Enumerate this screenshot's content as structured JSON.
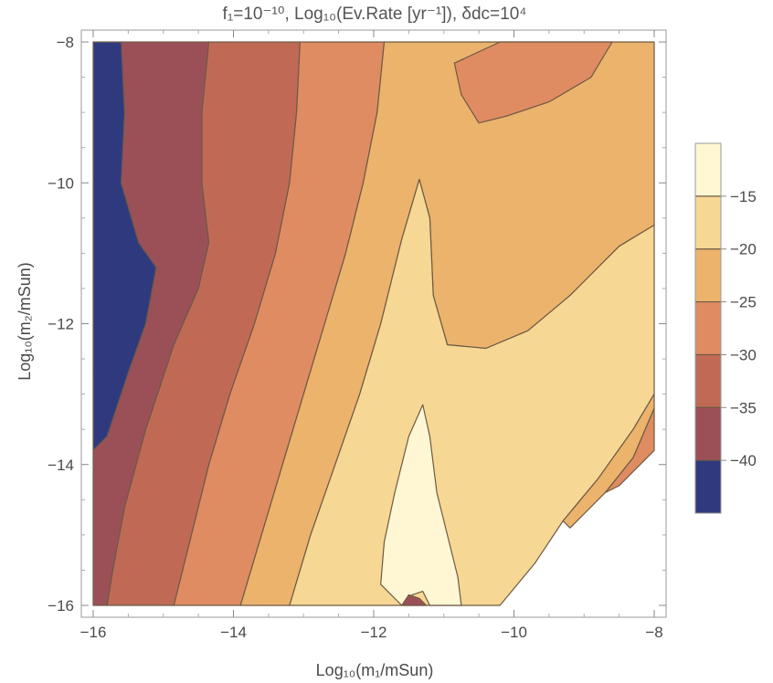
{
  "chart_data": {
    "type": "contour",
    "title": "f₁=10⁻¹⁰, Log₁₀(Ev.Rate [yr⁻¹]), δdc=10⁴",
    "xlabel": "Log₁₀(m₁/mSun)",
    "ylabel": "Log₁₀(m₂/mSun)",
    "xlim": [
      -16,
      -8
    ],
    "ylim": [
      -16,
      -8
    ],
    "x_ticks": [
      "−16",
      "−14",
      "−12",
      "−10",
      "−8"
    ],
    "y_ticks": [
      "−8",
      "−10",
      "−12",
      "−14",
      "−16"
    ],
    "x_tick_values": [
      -16,
      -14,
      -12,
      -10,
      -8
    ],
    "y_tick_values": [
      -8,
      -10,
      -12,
      -14,
      -16
    ],
    "contour_levels": [
      -40,
      -35,
      -30,
      -25,
      -20,
      -15
    ],
    "legend": {
      "position": "right",
      "labels": [
        "−15",
        "−20",
        "−25",
        "−30",
        "−35",
        "−40"
      ],
      "values": [
        -15,
        -20,
        -25,
        -30,
        -35,
        -40
      ]
    },
    "colors": {
      "band_below_-40": "#2f3a7e",
      "band_-40_-35": "#9b5058",
      "band_-35_-30": "#c06a56",
      "band_-30_-25": "#df8c62",
      "band_-25_-20": "#ecb36c",
      "band_-20_-15": "#f6d794",
      "band_above_-15": "#fff7d3",
      "contour_line": "#6d5a45"
    },
    "regions": [
      {
        "band": "band_below_-40",
        "polygon": [
          [
            -16,
            -8
          ],
          [
            -15.6,
            -8
          ],
          [
            -15.55,
            -9
          ],
          [
            -15.6,
            -10
          ],
          [
            -15.35,
            -10.85
          ],
          [
            -15.1,
            -11.2
          ],
          [
            -15.25,
            -12
          ],
          [
            -15.5,
            -12.7
          ],
          [
            -15.8,
            -13.6
          ],
          [
            -16,
            -13.8
          ]
        ]
      },
      {
        "band": "band_-40_-35",
        "polygon": [
          [
            -15.6,
            -8
          ],
          [
            -14.35,
            -8
          ],
          [
            -14.45,
            -9
          ],
          [
            -14.45,
            -10
          ],
          [
            -14.35,
            -10.85
          ],
          [
            -14.5,
            -11.5
          ],
          [
            -14.85,
            -12.3
          ],
          [
            -15.25,
            -13.5
          ],
          [
            -15.55,
            -14.6
          ],
          [
            -15.72,
            -15.5
          ],
          [
            -15.8,
            -16
          ],
          [
            -16,
            -16
          ],
          [
            -16,
            -13.8
          ],
          [
            -15.8,
            -13.6
          ],
          [
            -15.5,
            -12.7
          ],
          [
            -15.25,
            -12
          ],
          [
            -15.1,
            -11.2
          ],
          [
            -15.35,
            -10.85
          ],
          [
            -15.6,
            -10
          ],
          [
            -15.55,
            -9
          ]
        ]
      },
      {
        "band": "band_-35_-30",
        "polygon": [
          [
            -14.35,
            -8
          ],
          [
            -13.05,
            -8
          ],
          [
            -13.1,
            -9
          ],
          [
            -13.2,
            -10
          ],
          [
            -13.4,
            -11
          ],
          [
            -13.7,
            -12
          ],
          [
            -14.05,
            -13
          ],
          [
            -14.35,
            -14
          ],
          [
            -14.6,
            -15
          ],
          [
            -14.85,
            -16
          ],
          [
            -15.8,
            -16
          ],
          [
            -15.72,
            -15.5
          ],
          [
            -15.55,
            -14.6
          ],
          [
            -15.25,
            -13.5
          ],
          [
            -14.85,
            -12.3
          ],
          [
            -14.5,
            -11.5
          ],
          [
            -14.35,
            -10.85
          ],
          [
            -14.45,
            -10
          ],
          [
            -14.45,
            -9
          ]
        ]
      },
      {
        "band": "band_-30_-25",
        "polygon": [
          [
            -13.05,
            -8
          ],
          [
            -11.85,
            -8
          ],
          [
            -11.95,
            -9
          ],
          [
            -12.15,
            -10
          ],
          [
            -12.4,
            -11
          ],
          [
            -12.7,
            -12
          ],
          [
            -13.0,
            -13
          ],
          [
            -13.3,
            -14
          ],
          [
            -13.6,
            -15
          ],
          [
            -13.9,
            -16
          ],
          [
            -14.85,
            -16
          ],
          [
            -14.6,
            -15
          ],
          [
            -14.35,
            -14
          ],
          [
            -14.05,
            -13
          ],
          [
            -13.7,
            -12
          ],
          [
            -13.4,
            -11
          ],
          [
            -13.2,
            -10
          ],
          [
            -13.1,
            -9
          ]
        ]
      },
      {
        "band": "band_-25_-20",
        "polygon": [
          [
            -11.85,
            -8
          ],
          [
            -8,
            -8
          ],
          [
            -8,
            -10.6
          ],
          [
            -8.5,
            -10.9
          ],
          [
            -9.2,
            -11.6
          ],
          [
            -9.8,
            -12.1
          ],
          [
            -10.4,
            -12.35
          ],
          [
            -10.95,
            -12.3
          ],
          [
            -11.15,
            -11.6
          ],
          [
            -11.2,
            -10.5
          ],
          [
            -11.35,
            -9.95
          ],
          [
            -11.6,
            -10.8
          ],
          [
            -11.9,
            -12
          ],
          [
            -12.2,
            -13
          ],
          [
            -12.55,
            -14
          ],
          [
            -12.9,
            -15
          ],
          [
            -13.2,
            -16
          ],
          [
            -13.9,
            -16
          ],
          [
            -13.6,
            -15
          ],
          [
            -13.3,
            -14
          ],
          [
            -13.0,
            -13
          ],
          [
            -12.7,
            -12
          ],
          [
            -12.4,
            -11
          ],
          [
            -12.15,
            -10
          ],
          [
            -11.95,
            -9
          ]
        ]
      },
      {
        "band": "band_-20_-15",
        "polygon": [
          [
            -8,
            -10.6
          ],
          [
            -8,
            -13.0
          ],
          [
            -8.3,
            -13.5
          ],
          [
            -8.8,
            -14.2
          ],
          [
            -9.3,
            -14.8
          ],
          [
            -9.7,
            -15.4
          ],
          [
            -10.2,
            -16
          ],
          [
            -13.2,
            -16
          ],
          [
            -12.9,
            -15
          ],
          [
            -12.55,
            -14
          ],
          [
            -12.2,
            -13
          ],
          [
            -11.9,
            -12
          ],
          [
            -11.6,
            -10.8
          ],
          [
            -11.35,
            -9.95
          ],
          [
            -11.2,
            -10.5
          ],
          [
            -11.15,
            -11.6
          ],
          [
            -10.95,
            -12.3
          ],
          [
            -10.4,
            -12.35
          ],
          [
            -9.8,
            -12.1
          ],
          [
            -9.2,
            -11.6
          ],
          [
            -8.5,
            -10.9
          ]
        ]
      },
      {
        "band": "band_above_-15",
        "polygon": [
          [
            -11.3,
            -13.15
          ],
          [
            -11.2,
            -13.6
          ],
          [
            -11.1,
            -14.4
          ],
          [
            -10.95,
            -15.0
          ],
          [
            -10.8,
            -15.6
          ],
          [
            -10.75,
            -16
          ],
          [
            -11.2,
            -16
          ],
          [
            -11.3,
            -15.8
          ],
          [
            -11.45,
            -15.85
          ],
          [
            -11.6,
            -16
          ],
          [
            -11.9,
            -15.7
          ],
          [
            -11.85,
            -15.1
          ],
          [
            -11.7,
            -14.4
          ],
          [
            -11.5,
            -13.6
          ]
        ]
      },
      {
        "band": "band_-30_-25",
        "polygon": [
          [
            -10.2,
            -8
          ],
          [
            -8.6,
            -8
          ],
          [
            -8.9,
            -8.5
          ],
          [
            -9.5,
            -8.85
          ],
          [
            -10.1,
            -9.05
          ],
          [
            -10.5,
            -9.15
          ],
          [
            -10.75,
            -8.75
          ],
          [
            -10.85,
            -8.3
          ]
        ]
      },
      {
        "band": "band_-30_-25",
        "polygon": [
          [
            -8,
            -13.2
          ],
          [
            -8,
            -13.8
          ],
          [
            -8.5,
            -14.3
          ],
          [
            -8.7,
            -14.4
          ],
          [
            -8.3,
            -13.9
          ]
        ]
      },
      {
        "band": "band_-25_-20",
        "polygon": [
          [
            -8,
            -13.0
          ],
          [
            -8,
            -13.2
          ],
          [
            -8.3,
            -13.9
          ],
          [
            -8.7,
            -14.4
          ],
          [
            -9.2,
            -14.9
          ],
          [
            -9.3,
            -14.8
          ],
          [
            -8.8,
            -14.2
          ],
          [
            -8.3,
            -13.5
          ]
        ]
      },
      {
        "band": "band_-40_-35",
        "polygon": [
          [
            -11.5,
            -15.85
          ],
          [
            -11.35,
            -15.9
          ],
          [
            -11.25,
            -16
          ],
          [
            -11.6,
            -16
          ]
        ]
      }
    ]
  }
}
